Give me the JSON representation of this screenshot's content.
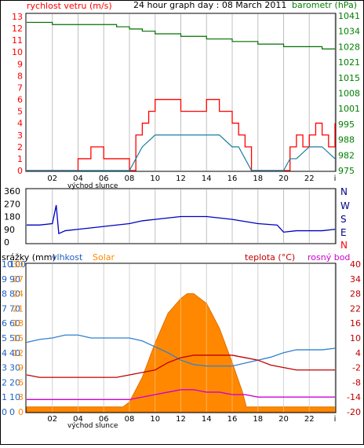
{
  "header": {
    "left_label": "rychlost vetru (m/s)",
    "title": "24 hour graph day : 08 March 2011",
    "right_label": "barometr (hPa)"
  },
  "panel2": {
    "left_ticks": [
      "360",
      "270",
      "180",
      "90",
      "0"
    ],
    "right_ticks": [
      "N",
      "W",
      "S",
      "E",
      "N"
    ]
  },
  "panel3": {
    "labels": {
      "srazky": "srážky (mm)",
      "vlhkost": "vlhkost",
      "solar": "Solar",
      "teplota": "teplota (°C)",
      "rosny": "rosný bod"
    },
    "srazky_ticks": [
      "10",
      "9",
      "8",
      "7",
      "6",
      "5",
      "4",
      "3",
      "2",
      "1",
      "0"
    ],
    "vlhkost_ticks": [
      "100",
      "90",
      "80",
      "70",
      "60",
      "50",
      "40",
      "30",
      "20",
      "10",
      "0"
    ],
    "solar_ticks": [
      "30",
      "27",
      "24",
      "21",
      "18",
      "15",
      "12",
      "9",
      "6",
      "3",
      "0"
    ],
    "temp_ticks": [
      "40",
      "34",
      "28",
      "22",
      "16",
      "10",
      "4",
      "-2",
      "-8",
      "-14",
      "-20"
    ]
  },
  "x_axis": {
    "ticks": [
      "02",
      "04",
      "06",
      "08",
      "10",
      "12",
      "14",
      "16",
      "18",
      "20",
      "22",
      "i"
    ],
    "sunrise_label": "východ slunce"
  },
  "colors": {
    "wind_gust": "#ff0000",
    "wind_avg": "#1a7fa0",
    "baro": "#007000",
    "dir": "#0000c0",
    "humidity": "#3080d0",
    "temp": "#c00000",
    "dew": "#d000d0",
    "solar": "#ff8800",
    "left_axis": "#ff0000",
    "right_axis": "#008000",
    "blue_axis": "#2060c0"
  },
  "chart_data": [
    {
      "type": "line",
      "title": "24 hour graph day : 08 March 2011",
      "x_range": [
        0,
        24
      ],
      "x_ticks": [
        "02",
        "04",
        "06",
        "08",
        "10",
        "12",
        "14",
        "16",
        "18",
        "20",
        "22",
        "i"
      ],
      "left_axis": {
        "label": "rychlost vetru (m/s)",
        "ticks": [
          0,
          1,
          2,
          3,
          4,
          5,
          6,
          7,
          8,
          9,
          10,
          11,
          12,
          13
        ],
        "range": [
          0,
          13.2
        ]
      },
      "right_axis": {
        "label": "barometr (hPa)",
        "ticks": [
          975,
          982,
          988,
          995,
          1001,
          1008,
          1015,
          1021,
          1028,
          1034,
          1041
        ]
      },
      "series": [
        {
          "name": "wind gust",
          "x": [
            0,
            2,
            4,
            5,
            6,
            7,
            8,
            8.5,
            9,
            9.5,
            10,
            11,
            12,
            13,
            14,
            15,
            16,
            16.5,
            17,
            17.5,
            18,
            19,
            20,
            20.5,
            21,
            21.5,
            22,
            22.5,
            23,
            23.5,
            24
          ],
          "values": [
            0,
            0,
            1,
            2,
            1,
            1,
            0,
            3,
            4,
            5,
            6,
            6,
            5,
            5,
            6,
            5,
            4,
            3,
            2,
            0,
            0,
            0,
            0,
            2,
            3,
            2,
            3,
            4,
            3,
            2,
            4
          ]
        },
        {
          "name": "wind avg",
          "x": [
            0,
            2,
            4,
            6,
            8,
            8.5,
            9,
            10,
            11,
            12,
            13,
            14,
            15,
            16,
            16.5,
            17,
            17.5,
            18,
            19,
            20,
            20.5,
            21,
            22,
            23,
            24
          ],
          "values": [
            0,
            0,
            0,
            0,
            0,
            1,
            2,
            3,
            3,
            3,
            3,
            3,
            3,
            2,
            2,
            1,
            0,
            0,
            0,
            0,
            1,
            1,
            2,
            2,
            1
          ]
        },
        {
          "name": "barometr",
          "x": [
            0,
            2,
            4,
            6,
            7,
            8,
            9,
            10,
            12,
            14,
            16,
            18,
            20,
            22,
            23,
            24
          ],
          "values": [
            1038,
            1037,
            1037,
            1037,
            1036,
            1035,
            1034,
            1033,
            1032,
            1031,
            1030,
            1029,
            1028,
            1028,
            1027,
            1027
          ]
        }
      ]
    },
    {
      "type": "line",
      "x_range": [
        0,
        24
      ],
      "left_axis": {
        "ticks": [
          360,
          270,
          180,
          90,
          0
        ]
      },
      "right_axis": {
        "ticks": [
          "N",
          "W",
          "S",
          "E",
          "N"
        ]
      },
      "series": [
        {
          "name": "wind direction",
          "x": [
            0,
            1,
            2,
            2.3,
            2.5,
            3,
            4,
            6,
            8,
            9,
            10,
            12,
            14,
            16,
            18,
            19.5,
            20,
            21,
            22,
            23,
            24
          ],
          "values": [
            120,
            120,
            130,
            260,
            60,
            80,
            90,
            110,
            130,
            150,
            160,
            180,
            180,
            160,
            130,
            120,
            70,
            80,
            80,
            80,
            90
          ]
        }
      ]
    },
    {
      "type": "area",
      "x_range": [
        0,
        24
      ],
      "axes": [
        {
          "label": "srážky (mm)",
          "ticks": [
            10,
            9,
            8,
            7,
            6,
            5,
            4,
            3,
            2,
            1,
            0
          ]
        },
        {
          "label": "vlhkost",
          "ticks": [
            100,
            90,
            80,
            70,
            60,
            50,
            40,
            30,
            20,
            10,
            0
          ]
        },
        {
          "label": "Solar",
          "ticks": [
            30,
            27,
            24,
            21,
            18,
            15,
            12,
            9,
            6,
            3,
            0
          ]
        },
        {
          "label": "teplota (°C)",
          "ticks": [
            40,
            34,
            28,
            22,
            16,
            10,
            4,
            -2,
            -8,
            -14,
            -20
          ]
        }
      ],
      "series": [
        {
          "name": "vlhkost",
          "x": [
            0,
            1,
            2,
            3,
            4,
            5,
            6,
            7,
            8,
            9,
            10,
            11,
            12,
            13,
            14,
            15,
            16,
            17,
            18,
            19,
            20,
            21,
            22,
            23,
            24
          ],
          "values": [
            47,
            49,
            50,
            52,
            52,
            50,
            50,
            50,
            50,
            48,
            44,
            40,
            35,
            32,
            31,
            31,
            31,
            33,
            35,
            37,
            40,
            42,
            42,
            42,
            43
          ]
        },
        {
          "name": "teplota",
          "x": [
            0,
            1,
            2,
            3,
            4,
            5,
            6,
            7,
            8,
            9,
            10,
            11,
            12,
            13,
            14,
            15,
            16,
            17,
            18,
            19,
            20,
            21,
            22,
            23,
            24
          ],
          "values": [
            -5,
            -6,
            -6,
            -6,
            -6,
            -6,
            -6,
            -6,
            -5,
            -4,
            -3,
            0,
            2,
            3,
            3,
            3,
            3,
            2,
            1,
            -1,
            -2,
            -3,
            -3,
            -3,
            -3
          ]
        },
        {
          "name": "rosný bod",
          "x": [
            0,
            1,
            2,
            3,
            4,
            5,
            6,
            7,
            8,
            9,
            10,
            11,
            12,
            13,
            14,
            15,
            16,
            17,
            18,
            19,
            20,
            21,
            22,
            23,
            24
          ],
          "values": [
            -15,
            -15,
            -15,
            -15,
            -15,
            -15,
            -15,
            -15,
            -15,
            -14,
            -13,
            -12,
            -11,
            -11,
            -12,
            -12,
            -13,
            -13,
            -14,
            -14,
            -14,
            -14,
            -14,
            -14,
            -14
          ]
        },
        {
          "name": "Solar",
          "x": [
            0,
            7.5,
            8,
            9,
            10,
            11,
            12,
            12.5,
            13,
            14,
            15,
            16,
            16.8,
            17.1,
            24
          ],
          "values": [
            1,
            1,
            2,
            7,
            14,
            20,
            23,
            24,
            24,
            22,
            17,
            10,
            4,
            1,
            1
          ]
        }
      ]
    }
  ]
}
